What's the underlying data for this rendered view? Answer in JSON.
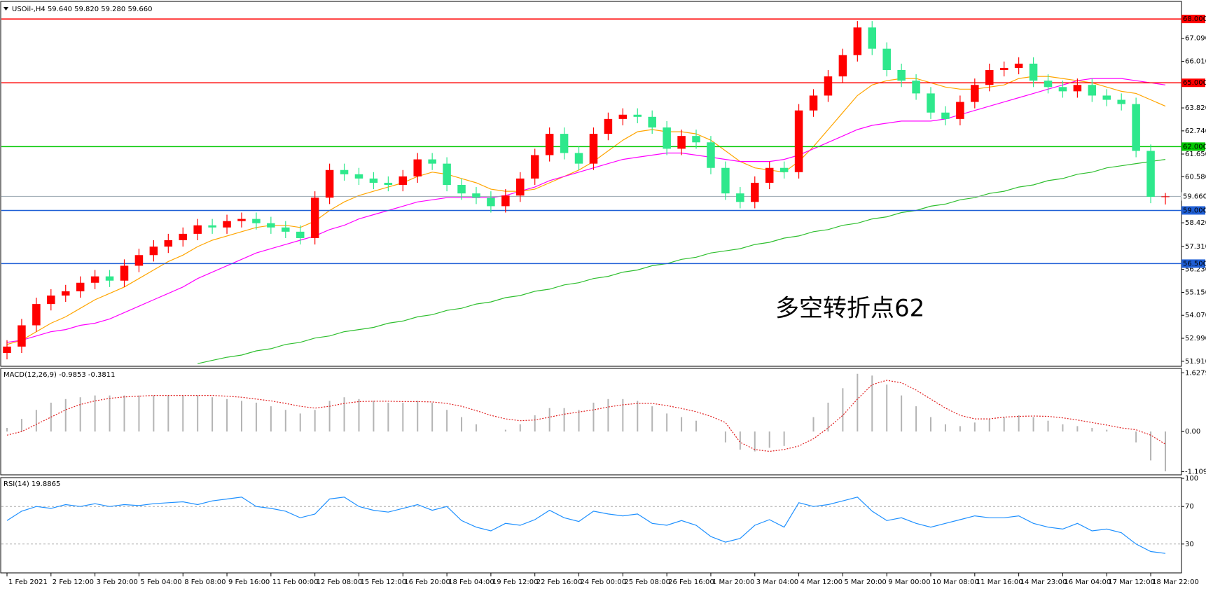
{
  "chart_data": [
    {
      "type": "candlestick",
      "title": "USOil-,H4 59.640 59.820 59.280 59.660",
      "annotation": "多空转折点62",
      "annotation_color": "#ff0000",
      "categories": [
        "1 Feb 2021",
        null,
        null,
        "2 Feb 12:00",
        null,
        null,
        "3 Feb 20:00",
        null,
        null,
        "5 Feb 04:00",
        null,
        null,
        "8 Feb 08:00",
        null,
        null,
        "9 Feb 16:00",
        null,
        null,
        "11 Feb 00:00",
        null,
        null,
        "12 Feb 08:00",
        null,
        null,
        "15 Feb 12:00",
        null,
        null,
        "16 Feb 20:00",
        null,
        null,
        "18 Feb 04:00",
        null,
        null,
        "19 Feb 12:00",
        null,
        null,
        "22 Feb 16:00",
        null,
        null,
        "24 Feb 00:00",
        null,
        null,
        "25 Feb 08:00",
        null,
        null,
        "26 Feb 16:00",
        null,
        null,
        "1 Mar 20:00",
        null,
        null,
        "3 Mar 04:00",
        null,
        null,
        "4 Mar 12:00",
        null,
        null,
        "5 Mar 20:00",
        null,
        null,
        "9 Mar 00:00",
        null,
        null,
        "10 Mar 08:00",
        null,
        null,
        "11 Mar 16:00",
        null,
        null,
        "14 Mar 23:00",
        null,
        null,
        "16 Mar 04:00",
        null,
        null,
        "17 Mar 12:00",
        null,
        null,
        "18 Mar 22:00",
        null
      ],
      "open": [
        52.3,
        52.6,
        53.6,
        54.6,
        55.0,
        55.2,
        55.6,
        55.9,
        55.7,
        56.4,
        56.9,
        57.3,
        57.6,
        57.9,
        58.3,
        58.2,
        58.5,
        58.6,
        58.4,
        58.2,
        58.0,
        57.7,
        59.6,
        60.9,
        60.7,
        60.5,
        60.3,
        60.2,
        60.6,
        61.4,
        61.2,
        60.2,
        59.8,
        59.6,
        59.2,
        59.7,
        60.5,
        61.6,
        62.6,
        61.7,
        61.2,
        62.6,
        63.3,
        63.5,
        63.4,
        62.9,
        61.9,
        62.5,
        62.2,
        61.0,
        59.8,
        59.4,
        60.3,
        61.0,
        60.8,
        63.7,
        64.4,
        65.3,
        66.3,
        67.6,
        66.6,
        65.6,
        65.1,
        64.5,
        63.6,
        63.3,
        64.1,
        64.9,
        65.6,
        65.7,
        65.9,
        65.1,
        64.8,
        64.6,
        64.9,
        64.4,
        64.2,
        64.0,
        61.8,
        59.64
      ],
      "high": [
        52.9,
        53.9,
        54.9,
        55.3,
        55.5,
        55.9,
        56.2,
        56.2,
        56.7,
        57.2,
        57.6,
        57.9,
        58.2,
        58.6,
        58.6,
        58.8,
        58.9,
        58.9,
        58.7,
        58.5,
        58.3,
        59.9,
        61.2,
        61.2,
        61.0,
        60.8,
        60.6,
        60.9,
        61.7,
        61.7,
        61.5,
        60.5,
        60.1,
        59.9,
        60.0,
        60.8,
        61.9,
        62.9,
        62.9,
        62.0,
        62.9,
        63.6,
        63.8,
        63.8,
        63.7,
        63.2,
        62.8,
        62.8,
        62.5,
        61.3,
        60.1,
        60.6,
        61.3,
        61.3,
        64.0,
        64.7,
        65.6,
        66.6,
        67.9,
        67.9,
        66.9,
        65.9,
        65.4,
        64.8,
        63.9,
        64.4,
        65.2,
        65.9,
        66.0,
        66.2,
        66.2,
        65.4,
        65.1,
        65.2,
        65.2,
        64.7,
        64.5,
        64.3,
        62.1,
        59.82
      ],
      "low": [
        52.0,
        52.3,
        53.3,
        54.3,
        54.7,
        54.9,
        55.3,
        55.4,
        55.4,
        56.1,
        56.6,
        57.0,
        57.3,
        57.6,
        57.9,
        57.9,
        58.2,
        58.1,
        57.9,
        57.7,
        57.4,
        57.4,
        59.3,
        60.4,
        60.2,
        60.0,
        59.9,
        59.9,
        60.3,
        60.9,
        59.9,
        59.5,
        59.3,
        58.9,
        58.9,
        59.4,
        60.2,
        61.3,
        61.4,
        60.9,
        60.9,
        62.3,
        63.0,
        63.1,
        62.6,
        61.6,
        61.6,
        61.9,
        60.7,
        59.5,
        59.1,
        59.1,
        60.0,
        60.5,
        60.5,
        63.4,
        64.1,
        65.0,
        66.0,
        66.3,
        65.3,
        64.8,
        64.2,
        63.3,
        63.0,
        63.0,
        63.8,
        64.6,
        65.3,
        65.4,
        64.8,
        64.5,
        64.3,
        64.3,
        64.1,
        63.9,
        63.7,
        61.5,
        59.34,
        59.28
      ],
      "close": [
        52.6,
        53.6,
        54.6,
        55.0,
        55.2,
        55.6,
        55.9,
        55.7,
        56.4,
        56.9,
        57.3,
        57.6,
        57.9,
        58.3,
        58.2,
        58.5,
        58.6,
        58.4,
        58.2,
        58.0,
        57.7,
        59.6,
        60.9,
        60.7,
        60.5,
        60.3,
        60.2,
        60.6,
        61.4,
        61.2,
        60.2,
        59.8,
        59.6,
        59.2,
        59.7,
        60.5,
        61.6,
        62.6,
        61.7,
        61.2,
        62.6,
        63.3,
        63.5,
        63.4,
        62.9,
        61.9,
        62.5,
        62.2,
        61.0,
        59.8,
        59.4,
        60.3,
        61.0,
        60.8,
        63.7,
        64.4,
        65.3,
        66.3,
        67.6,
        66.6,
        65.6,
        65.1,
        64.5,
        63.6,
        63.3,
        64.1,
        64.9,
        65.6,
        65.7,
        65.9,
        65.1,
        64.8,
        64.6,
        64.9,
        64.4,
        64.2,
        64.0,
        61.8,
        59.64,
        59.66
      ],
      "up_color": "#ff0000",
      "down_color": "#2ee88c",
      "lines": [
        {
          "color": "#ffa500",
          "values": [
            52.7,
            52.9,
            53.3,
            53.7,
            54.0,
            54.4,
            54.8,
            55.1,
            55.4,
            55.8,
            56.2,
            56.6,
            56.9,
            57.3,
            57.6,
            57.8,
            58.0,
            58.2,
            58.3,
            58.3,
            58.2,
            58.5,
            59.0,
            59.4,
            59.7,
            59.9,
            60.1,
            60.3,
            60.6,
            60.8,
            60.7,
            60.5,
            60.3,
            60.0,
            59.9,
            59.9,
            60.0,
            60.3,
            60.6,
            60.9,
            61.3,
            61.8,
            62.3,
            62.7,
            62.8,
            62.7,
            62.7,
            62.6,
            62.3,
            61.8,
            61.3,
            61.0,
            60.9,
            60.8,
            61.3,
            62.0,
            62.8,
            63.6,
            64.4,
            64.9,
            65.1,
            65.2,
            65.2,
            65.0,
            64.8,
            64.7,
            64.7,
            64.8,
            64.9,
            65.2,
            65.3,
            65.3,
            65.2,
            65.1,
            65.0,
            64.8,
            64.6,
            64.5,
            64.2,
            63.9
          ]
        },
        {
          "color": "#ff00ff",
          "values": [
            52.8,
            52.9,
            53.1,
            53.3,
            53.4,
            53.6,
            53.7,
            53.9,
            54.2,
            54.5,
            54.8,
            55.1,
            55.4,
            55.8,
            56.1,
            56.4,
            56.7,
            57.0,
            57.2,
            57.4,
            57.6,
            57.8,
            58.1,
            58.3,
            58.6,
            58.8,
            59.0,
            59.2,
            59.4,
            59.5,
            59.6,
            59.6,
            59.6,
            59.6,
            59.7,
            59.9,
            60.1,
            60.4,
            60.6,
            60.8,
            61.0,
            61.2,
            61.4,
            61.5,
            61.6,
            61.7,
            61.7,
            61.6,
            61.5,
            61.4,
            61.3,
            61.3,
            61.3,
            61.4,
            61.6,
            61.9,
            62.2,
            62.5,
            62.8,
            63.0,
            63.1,
            63.2,
            63.2,
            63.2,
            63.3,
            63.5,
            63.7,
            63.9,
            64.1,
            64.3,
            64.5,
            64.7,
            64.9,
            65.1,
            65.2,
            65.2,
            65.2,
            65.1,
            65.0,
            64.9
          ]
        },
        {
          "color": "#2fbf2f",
          "values": [
            null,
            null,
            null,
            null,
            null,
            null,
            null,
            null,
            null,
            null,
            null,
            null,
            null,
            51.8,
            51.95,
            52.1,
            52.2,
            52.4,
            52.5,
            52.7,
            52.8,
            53.0,
            53.1,
            53.3,
            53.4,
            53.5,
            53.7,
            53.8,
            54.0,
            54.1,
            54.3,
            54.4,
            54.6,
            54.7,
            54.9,
            55.0,
            55.2,
            55.3,
            55.5,
            55.6,
            55.8,
            55.9,
            56.1,
            56.2,
            56.4,
            56.5,
            56.7,
            56.8,
            57.0,
            57.1,
            57.2,
            57.4,
            57.5,
            57.7,
            57.8,
            58.0,
            58.1,
            58.3,
            58.4,
            58.6,
            58.7,
            58.9,
            59.0,
            59.2,
            59.3,
            59.5,
            59.6,
            59.8,
            59.9,
            60.1,
            60.2,
            60.4,
            60.5,
            60.7,
            60.8,
            61.0,
            61.1,
            61.2,
            61.3,
            61.4
          ]
        }
      ],
      "levels": [
        {
          "value": 68,
          "label": "68.000",
          "color": "#ff0000"
        },
        {
          "value": 65,
          "label": "65.000",
          "color": "#ff0000"
        },
        {
          "value": 62,
          "label": "62.000",
          "color": "#00c800"
        },
        {
          "value": 59,
          "label": "59.000",
          "color": "#1f5fd6"
        },
        {
          "value": 56.5,
          "label": "56.500",
          "color": "#1f5fd6"
        }
      ],
      "last_price": {
        "value": 59.66,
        "label": "59.660",
        "color": "#9aa7b0"
      },
      "ylim": [
        51.74,
        68.76
      ],
      "yticks": [
        {
          "value": 67.09,
          "label": "67.090"
        },
        {
          "value": 66.01,
          "label": "66.010"
        },
        {
          "value": 63.82,
          "label": "63.820"
        },
        {
          "value": 62.74,
          "label": "62.740"
        },
        {
          "value": 61.65,
          "label": "61.650"
        },
        {
          "value": 60.58,
          "label": "60.580"
        },
        {
          "value": 58.42,
          "label": "58.420"
        },
        {
          "value": 57.31,
          "label": "57.310"
        },
        {
          "value": 56.23,
          "label": "56.230"
        },
        {
          "value": 55.15,
          "label": "55.150"
        },
        {
          "value": 54.07,
          "label": "54.070"
        },
        {
          "value": 52.99,
          "label": "52.990"
        },
        {
          "value": 51.91,
          "label": "51.910"
        }
      ]
    },
    {
      "type": "macd",
      "title": "MACD(12,26,9) -0.9853 -0.3811",
      "histogram": [
        0.1,
        0.35,
        0.6,
        0.8,
        0.9,
        0.95,
        1.0,
        1.0,
        1.0,
        1.0,
        1.0,
        1.0,
        1.0,
        1.0,
        0.95,
        0.9,
        0.85,
        0.8,
        0.7,
        0.6,
        0.5,
        0.6,
        0.85,
        0.95,
        0.9,
        0.85,
        0.8,
        0.8,
        0.85,
        0.8,
        0.6,
        0.4,
        0.2,
        0.0,
        0.05,
        0.2,
        0.45,
        0.65,
        0.65,
        0.6,
        0.8,
        0.9,
        0.9,
        0.85,
        0.7,
        0.5,
        0.4,
        0.3,
        0.0,
        -0.3,
        -0.5,
        -0.55,
        -0.45,
        -0.4,
        0.0,
        0.4,
        0.8,
        1.2,
        1.6,
        1.55,
        1.3,
        1.0,
        0.7,
        0.4,
        0.2,
        0.15,
        0.25,
        0.35,
        0.4,
        0.45,
        0.4,
        0.3,
        0.2,
        0.15,
        0.1,
        0.05,
        0.0,
        -0.3,
        -0.8,
        -1.1
      ],
      "signal": [
        -0.1,
        0.0,
        0.2,
        0.4,
        0.6,
        0.75,
        0.85,
        0.92,
        0.96,
        0.98,
        1.0,
        1.0,
        1.0,
        1.0,
        1.0,
        0.98,
        0.95,
        0.9,
        0.85,
        0.78,
        0.7,
        0.65,
        0.7,
        0.78,
        0.83,
        0.84,
        0.84,
        0.83,
        0.83,
        0.82,
        0.78,
        0.7,
        0.58,
        0.45,
        0.35,
        0.3,
        0.32,
        0.4,
        0.48,
        0.54,
        0.6,
        0.68,
        0.74,
        0.78,
        0.78,
        0.72,
        0.64,
        0.55,
        0.42,
        0.25,
        -0.3,
        -0.5,
        -0.55,
        -0.5,
        -0.4,
        -0.2,
        0.1,
        0.45,
        0.9,
        1.3,
        1.42,
        1.35,
        1.15,
        0.9,
        0.65,
        0.45,
        0.35,
        0.35,
        0.4,
        0.42,
        0.43,
        0.42,
        0.38,
        0.32,
        0.25,
        0.18,
        0.1,
        0.05,
        -0.1,
        -0.35
      ],
      "histogram_color": "#b4b4b4",
      "signal_color": "#e02020",
      "ylim": [
        -1.18,
        1.73
      ],
      "yticks": [
        1.6279,
        {
          "value": 0,
          "label": "0.00"
        },
        -1.1097
      ]
    },
    {
      "type": "line",
      "title": "RSI(14) 19.8865",
      "values": [
        55,
        65,
        70,
        68,
        72,
        70,
        73,
        70,
        72,
        71,
        73,
        74,
        75,
        72,
        76,
        78,
        80,
        70,
        68,
        65,
        58,
        62,
        78,
        80,
        70,
        66,
        64,
        68,
        72,
        66,
        70,
        55,
        48,
        44,
        52,
        50,
        56,
        66,
        58,
        54,
        65,
        62,
        60,
        62,
        52,
        50,
        55,
        50,
        38,
        32,
        36,
        50,
        56,
        48,
        74,
        70,
        72,
        76,
        80,
        65,
        55,
        58,
        52,
        48,
        52,
        56,
        60,
        58,
        58,
        60,
        52,
        48,
        46,
        52,
        44,
        46,
        42,
        30,
        22,
        20
      ],
      "color": "#1e90ff",
      "levels": [
        70,
        30
      ],
      "ylim": [
        0,
        100
      ],
      "yticks": [
        100,
        70,
        30
      ]
    }
  ]
}
